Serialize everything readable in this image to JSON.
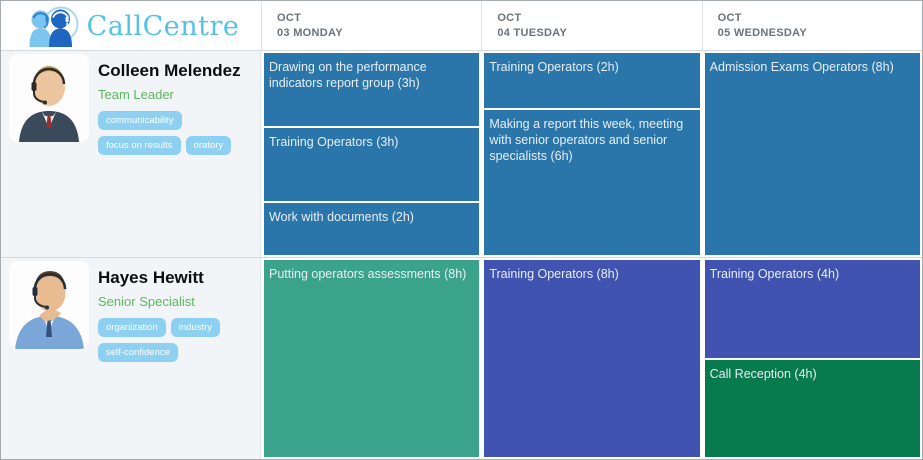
{
  "app": {
    "title": "CallCentre"
  },
  "colors": {
    "blue": "#2a76ab",
    "teal": "#3ba38c",
    "indigo": "#4053b0",
    "green": "#077a4e",
    "tag": "#8dd0f2",
    "role": "#5cb85c",
    "logo_text": "#56c1e8"
  },
  "header": {
    "days": [
      {
        "month": "OCT",
        "label": "03 MONDAY"
      },
      {
        "month": "OCT",
        "label": "04 TUESDAY"
      },
      {
        "month": "OCT",
        "label": "05 WEDNESDAY"
      }
    ]
  },
  "rows": [
    {
      "name": "Colleen Melendez",
      "role": "Team Leader",
      "tags": [
        "communicability",
        "focus on results",
        "oratory"
      ],
      "days": [
        {
          "tasks": [
            {
              "label": "Drawing on the performance indicators report group (3h)",
              "hours": 3,
              "color": "blue"
            },
            {
              "label": "Training Operators (3h)",
              "hours": 3,
              "color": "blue"
            },
            {
              "label": "Work with documents (2h)",
              "hours": 2,
              "color": "blue"
            }
          ]
        },
        {
          "tasks": [
            {
              "label": "Training Operators (2h)",
              "hours": 2,
              "color": "blue"
            },
            {
              "label": "Making a report this week, meeting with senior operators and senior specialists (6h)",
              "hours": 6,
              "color": "blue"
            }
          ]
        },
        {
          "tasks": [
            {
              "label": "Admission Exams Operators (8h)",
              "hours": 8,
              "color": "blue"
            }
          ]
        }
      ]
    },
    {
      "name": "Hayes Hewitt",
      "role": "Senior Specialist",
      "tags": [
        "organization",
        "industry",
        "self-confidence"
      ],
      "days": [
        {
          "tasks": [
            {
              "label": "Putting operators assessments (8h)",
              "hours": 8,
              "color": "teal"
            }
          ]
        },
        {
          "tasks": [
            {
              "label": "Training Operators (8h)",
              "hours": 8,
              "color": "indigo"
            }
          ]
        },
        {
          "tasks": [
            {
              "label": "Training Operators (4h)",
              "hours": 4,
              "color": "indigo"
            },
            {
              "label": "Call Reception (4h)",
              "hours": 4,
              "color": "green"
            }
          ]
        }
      ]
    }
  ]
}
